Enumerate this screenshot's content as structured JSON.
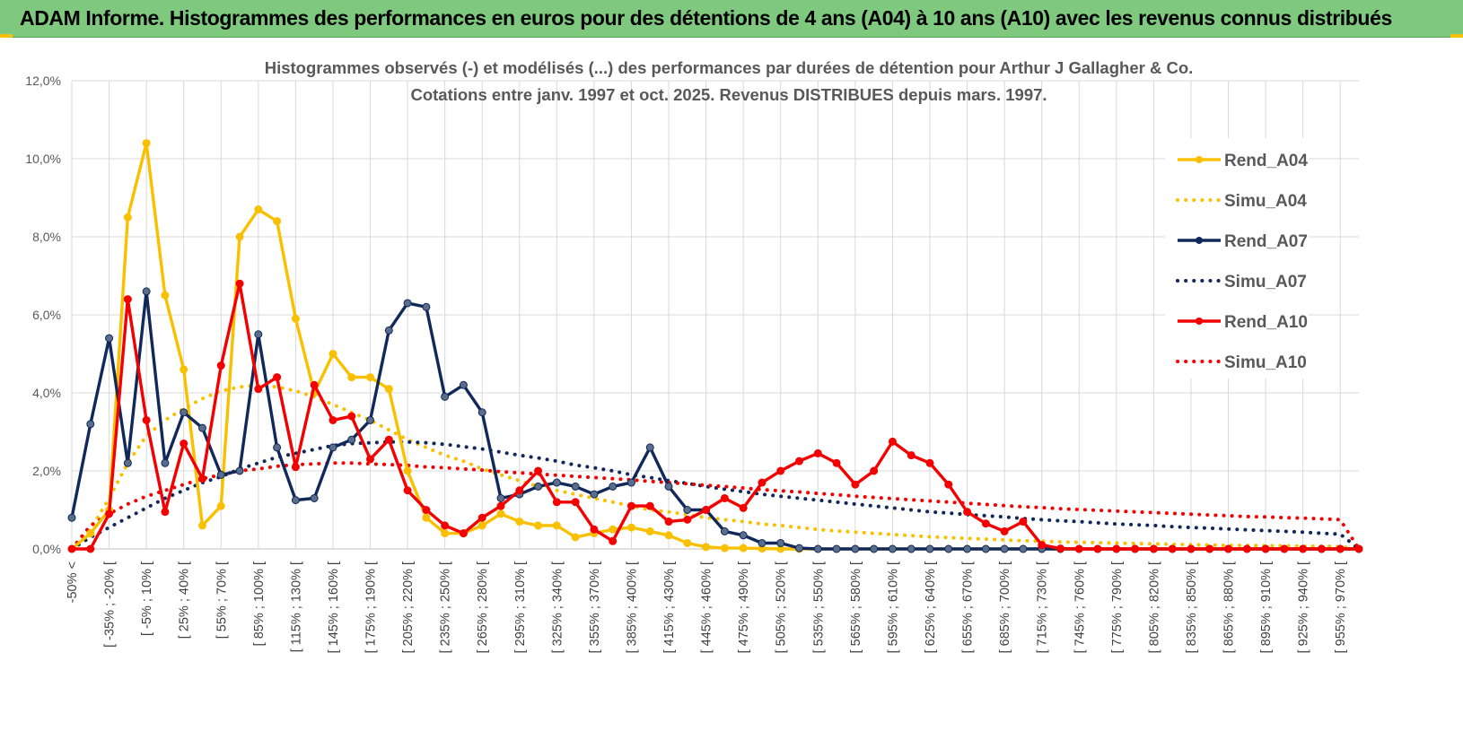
{
  "header": {
    "title": "ADAM Informe. Histogrammes des performances en euros pour des détentions de 4 ans (A04) à 10 ans (A10) avec les revenus connus distribués"
  },
  "colors": {
    "banner": "#7fc97f",
    "A04": "#f9c000",
    "A07": "#10285a",
    "A10": "#f40000",
    "grid": "#d9d9d9"
  },
  "chart_data": {
    "type": "line",
    "title": "Histogrammes observés (-) et modélisés (...) des performances par durées de détention pour Arthur J Gallagher & Co.",
    "subtitle": "Cotations entre janv. 1997 et oct. 2025.  Revenus DISTRIBUES depuis mars. 1997.",
    "legend_position": "right",
    "ylim": [
      0,
      12
    ],
    "y_ticks": [
      "0,0%",
      "2,0%",
      "4,0%",
      "6,0%",
      "8,0%",
      "10,0%",
      "12,0%"
    ],
    "x_tick_labels": [
      "-50% <",
      "[ -35% ; -20% [",
      "[ -5% ; 10% [",
      "[ 25% ; 40% [",
      "[ 55% ; 70% [",
      "[ 85% ; 100% [",
      "[ 115% ; 130% [",
      "[ 145% ; 160% [",
      "[ 175% ; 190% [",
      "[ 205% ; 220% [",
      "[ 235% ; 250% [",
      "[ 265% ; 280% [",
      "[ 295% ; 310% [",
      "[ 325% ; 340% [",
      "[ 355% ; 370% [",
      "[ 385% ; 400% [",
      "[ 415% ; 430% [",
      "[ 445% ; 460% [",
      "[ 475% ; 490% [",
      "[ 505% ; 520% [",
      "[ 535% ; 550% [",
      "[ 565% ; 580% [",
      "[ 595% ; 610% [",
      "[ 625% ; 640% [",
      "[ 655% ; 670% [",
      "[ 685% ; 700% [",
      "[ 715% ; 730% [",
      "[ 745% ; 760% [",
      "[ 775% ; 790% [",
      "[ 805% ; 820% [",
      "[ 835% ; 850% [",
      "[ 865% ; 880% [",
      "[ 895% ; 910% [",
      "[ 925% ; 940% [",
      "[ 955% ; 970% ["
    ],
    "series": [
      {
        "name": "Rend_A04",
        "style": "solid",
        "color": "#f9c000",
        "values": [
          0,
          0.4,
          1.0,
          8.5,
          10.4,
          6.5,
          4.6,
          0.6,
          1.1,
          8.0,
          8.7,
          8.4,
          5.9,
          4.0,
          5.0,
          4.4,
          4.4,
          4.1,
          2.0,
          0.8,
          0.4,
          0.4,
          0.6,
          0.9,
          0.7,
          0.6,
          0.6,
          0.3,
          0.4,
          0.5,
          0.55,
          0.45,
          0.35,
          0.15,
          0.05,
          0.02,
          0.02,
          0.01,
          0,
          0,
          0,
          0,
          0,
          0,
          0,
          0,
          0,
          0,
          0,
          0,
          0,
          0,
          0,
          0,
          0,
          0,
          0,
          0,
          0,
          0,
          0,
          0,
          0,
          0,
          0,
          0,
          0,
          0,
          0,
          0
        ]
      },
      {
        "name": "Simu_A04",
        "style": "dotted",
        "color": "#f9c000",
        "values": [
          0,
          0.5,
          1.3,
          2.2,
          2.9,
          3.3,
          3.6,
          3.85,
          4.05,
          4.15,
          4.2,
          4.15,
          4.05,
          3.9,
          3.7,
          3.5,
          3.3,
          3.05,
          2.8,
          2.6,
          2.4,
          2.25,
          2.05,
          1.9,
          1.75,
          1.6,
          1.5,
          1.4,
          1.3,
          1.2,
          1.1,
          1.0,
          0.95,
          0.88,
          0.8,
          0.75,
          0.7,
          0.64,
          0.6,
          0.55,
          0.5,
          0.46,
          0.43,
          0.4,
          0.37,
          0.34,
          0.31,
          0.29,
          0.27,
          0.25,
          0.23,
          0.21,
          0.2,
          0.18,
          0.17,
          0.16,
          0.15,
          0.14,
          0.13,
          0.12,
          0.11,
          0.1,
          0.09,
          0.09,
          0.08,
          0.08,
          0.07,
          0.07,
          0.06,
          0
        ]
      },
      {
        "name": "Rend_A07",
        "style": "solid",
        "color": "#10285a",
        "values": [
          0.8,
          3.2,
          5.4,
          2.2,
          6.6,
          2.2,
          3.5,
          3.1,
          1.9,
          2.0,
          5.5,
          2.6,
          1.25,
          1.3,
          2.6,
          2.8,
          3.3,
          5.6,
          6.3,
          6.2,
          3.9,
          4.2,
          3.5,
          1.3,
          1.4,
          1.6,
          1.7,
          1.6,
          1.4,
          1.6,
          1.7,
          2.6,
          1.6,
          1.0,
          1.0,
          0.45,
          0.35,
          0.15,
          0.15,
          0.02,
          0,
          0,
          0,
          0,
          0,
          0,
          0,
          0,
          0,
          0,
          0,
          0,
          0,
          0,
          0,
          0,
          0,
          0,
          0,
          0,
          0,
          0,
          0,
          0,
          0,
          0,
          0,
          0,
          0,
          0
        ]
      },
      {
        "name": "Simu_A07",
        "style": "dotted",
        "color": "#10285a",
        "values": [
          0,
          0.3,
          0.55,
          0.8,
          1.05,
          1.3,
          1.5,
          1.7,
          1.85,
          2.05,
          2.2,
          2.35,
          2.45,
          2.55,
          2.65,
          2.7,
          2.72,
          2.74,
          2.74,
          2.72,
          2.68,
          2.62,
          2.56,
          2.48,
          2.4,
          2.33,
          2.25,
          2.15,
          2.08,
          2.0,
          1.9,
          1.83,
          1.75,
          1.68,
          1.6,
          1.53,
          1.47,
          1.4,
          1.35,
          1.3,
          1.25,
          1.2,
          1.15,
          1.1,
          1.05,
          1.0,
          0.95,
          0.92,
          0.88,
          0.85,
          0.82,
          0.78,
          0.75,
          0.72,
          0.7,
          0.67,
          0.64,
          0.62,
          0.6,
          0.57,
          0.55,
          0.53,
          0.51,
          0.49,
          0.47,
          0.45,
          0.43,
          0.4,
          0.38,
          0
        ]
      },
      {
        "name": "Rend_A10",
        "style": "solid",
        "color": "#f40000",
        "values": [
          0,
          0,
          0.9,
          6.4,
          3.3,
          0.95,
          2.7,
          1.8,
          4.7,
          6.8,
          4.1,
          4.4,
          2.1,
          4.2,
          3.3,
          3.4,
          2.3,
          2.8,
          1.5,
          1.0,
          0.6,
          0.4,
          0.8,
          1.1,
          1.5,
          2.0,
          1.2,
          1.2,
          0.5,
          0.2,
          1.1,
          1.1,
          0.7,
          0.75,
          1.0,
          1.3,
          1.05,
          1.7,
          2.0,
          2.25,
          2.45,
          2.2,
          1.65,
          2.0,
          2.75,
          2.4,
          2.2,
          1.65,
          0.95,
          0.65,
          0.45,
          0.7,
          0.1,
          0.01,
          0,
          0,
          0,
          0,
          0,
          0,
          0,
          0,
          0,
          0,
          0,
          0,
          0,
          0,
          0,
          0
        ]
      },
      {
        "name": "Simu_A10",
        "style": "dotted",
        "color": "#f40000",
        "values": [
          0,
          0.6,
          0.9,
          1.15,
          1.35,
          1.5,
          1.65,
          1.8,
          1.9,
          2.0,
          2.05,
          2.12,
          2.16,
          2.18,
          2.2,
          2.2,
          2.18,
          2.16,
          2.14,
          2.1,
          2.08,
          2.05,
          2.02,
          1.98,
          1.95,
          1.92,
          1.89,
          1.86,
          1.83,
          1.8,
          1.77,
          1.73,
          1.7,
          1.67,
          1.63,
          1.6,
          1.56,
          1.52,
          1.49,
          1.46,
          1.42,
          1.39,
          1.35,
          1.32,
          1.29,
          1.26,
          1.23,
          1.2,
          1.17,
          1.14,
          1.11,
          1.08,
          1.06,
          1.03,
          1.01,
          0.99,
          0.97,
          0.95,
          0.93,
          0.91,
          0.89,
          0.87,
          0.85,
          0.83,
          0.82,
          0.8,
          0.79,
          0.77,
          0.75,
          0
        ]
      }
    ]
  }
}
